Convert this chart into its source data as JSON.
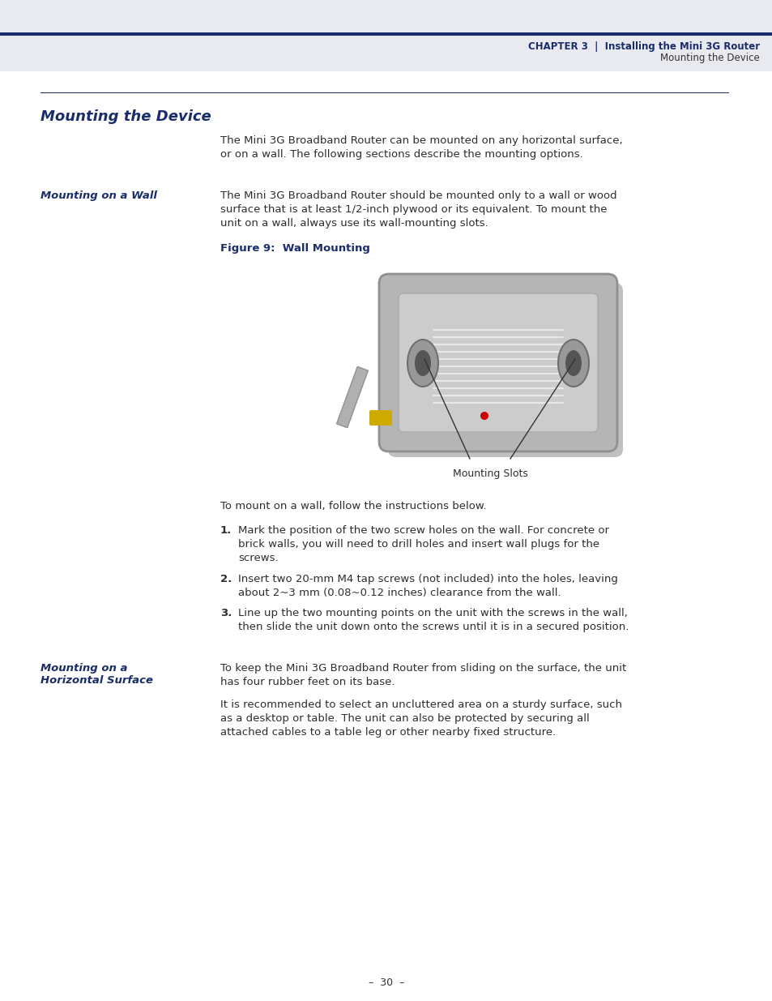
{
  "page_bg": "#ffffff",
  "header_bg": "#e8eaf0",
  "header_bar_color": "#1a2d6b",
  "header_chapter": "CHAPTER 3",
  "header_sep": "|",
  "header_right1": "Installing the Mini 3G Router",
  "header_right2": "Mounting the Device",
  "section_title": "Mounting the Device",
  "section_title_color": "#1a2d6b",
  "divider_color": "#1a2d6b",
  "intro_text": "The Mini 3G Broadband Router can be mounted on any horizontal surface,\nor on a wall. The following sections describe the mounting options.",
  "subsection1_title": "Mounting on a Wall",
  "subsection1_title_color": "#1a2d6b",
  "subsection1_text": "The Mini 3G Broadband Router should be mounted only to a wall or wood\nsurface that is at least 1/2-inch plywood or its equivalent. To mount the\nunit on a wall, always use its wall-mounting slots.",
  "figure_caption": "Figure 9:  Wall Mounting",
  "figure_caption_color": "#1a2d6b",
  "mounting_slots_label": "Mounting Slots",
  "wall_instructions_intro": "To mount on a wall, follow the instructions below.",
  "step1_num": "1.",
  "step1_text": "Mark the position of the two screw holes on the wall. For concrete or\nbrick walls, you will need to drill holes and insert wall plugs for the\nscrews.",
  "step2_num": "2.",
  "step2_text": "Insert two 20-mm M4 tap screws (not included) into the holes, leaving\nabout 2~3 mm (0.08~0.12 inches) clearance from the wall.",
  "step3_num": "3.",
  "step3_text": "Line up the two mounting points on the unit with the screws in the wall,\nthen slide the unit down onto the screws until it is in a secured position.",
  "subsection2_title_line1": "Mounting on a",
  "subsection2_title_line2": "Horizontal Surface",
  "subsection2_title_color": "#1a2d6b",
  "subsection2_text1": "To keep the Mini 3G Broadband Router from sliding on the surface, the unit\nhas four rubber feet on its base.",
  "subsection2_text2": "It is recommended to select an uncluttered area on a sturdy surface, such\nas a desktop or table. The unit can also be protected by securing all\nattached cables to a table leg or other nearby fixed structure.",
  "footer_text": "–  30  –",
  "footer_color": "#333333",
  "body_text_color": "#333333",
  "text_color": "#2d2d2d"
}
